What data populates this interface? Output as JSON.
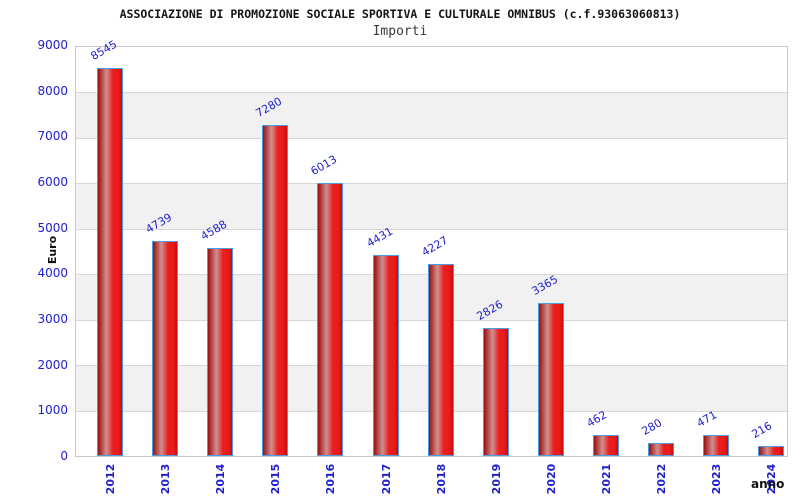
{
  "chart_data": {
    "type": "bar",
    "title": "ASSOCIAZIONE DI PROMOZIONE SOCIALE SPORTIVA E CULTURALE OMNIBUS (c.f.93063060813)",
    "subtitle": "Importi",
    "xlabel": "anno",
    "ylabel": "Euro",
    "categories": [
      "2012",
      "2013",
      "2014",
      "2015",
      "2016",
      "2017",
      "2018",
      "2019",
      "2020",
      "2021",
      "2022",
      "2023",
      "2024"
    ],
    "values": [
      8545,
      4739,
      4588,
      7280,
      6013,
      4431,
      4227,
      2826,
      3365,
      462,
      280,
      471,
      216
    ],
    "ylim": [
      0,
      9000
    ],
    "ytick_step": 1000,
    "yticks": [
      "0",
      "1000",
      "2000",
      "3000",
      "4000",
      "5000",
      "6000",
      "7000",
      "8000",
      "9000"
    ],
    "grid": true,
    "legend": false,
    "colors": {
      "bar_main": "#e81f1f",
      "bar_dark": "#9e0e0e",
      "bar_highlight": "#d09090",
      "bar_border": "#4a9de0",
      "axis_text_blue": "#2121cc",
      "band_gray": "#f1f1f1",
      "band_white": "#ffffff",
      "grid_line": "#d7d7d7",
      "frame": "#c9c9c9",
      "title_text": "#141414",
      "subtitle_text": "#3d3d3d"
    }
  }
}
